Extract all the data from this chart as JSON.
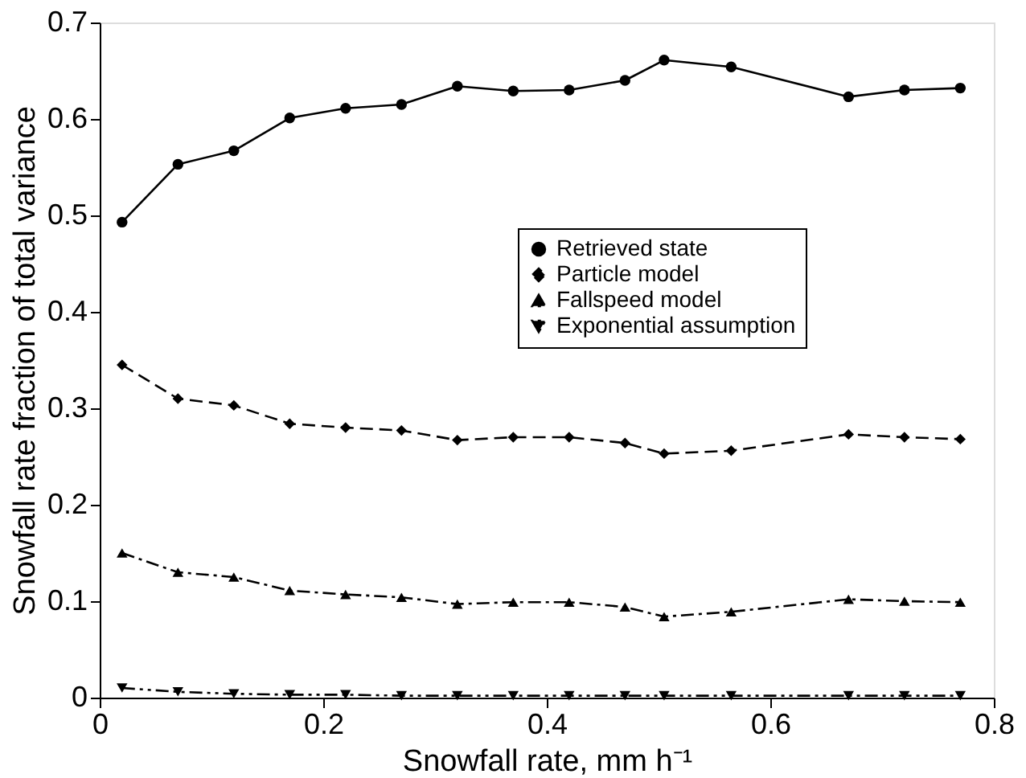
{
  "chart_data": {
    "type": "line",
    "xlabel": "Snowfall rate, mm h⁻¹",
    "ylabel": "Snowfall rate fraction of total variance",
    "x": [
      0.02,
      0.07,
      0.12,
      0.17,
      0.22,
      0.27,
      0.32,
      0.37,
      0.42,
      0.47,
      0.505,
      0.565,
      0.67,
      0.72,
      0.77
    ],
    "series": [
      {
        "name": "Retrieved state",
        "color": "#000000",
        "marker": "circle",
        "line_style": "solid",
        "values": [
          0.493,
          0.553,
          0.567,
          0.601,
          0.611,
          0.615,
          0.634,
          0.629,
          0.63,
          0.64,
          0.661,
          0.654,
          0.623,
          0.63,
          0.632
        ]
      },
      {
        "name": "Particle model",
        "color": "#000000",
        "marker": "diamond",
        "line_style": "dashed",
        "values": [
          0.345,
          0.31,
          0.303,
          0.284,
          0.28,
          0.277,
          0.267,
          0.27,
          0.27,
          0.264,
          0.253,
          0.256,
          0.273,
          0.27,
          0.268
        ]
      },
      {
        "name": "Fallspeed model",
        "color": "#000000",
        "marker": "triangle",
        "line_style": "dashdot",
        "values": [
          0.15,
          0.13,
          0.125,
          0.111,
          0.107,
          0.104,
          0.097,
          0.099,
          0.099,
          0.094,
          0.084,
          0.089,
          0.102,
          0.1,
          0.099
        ]
      },
      {
        "name": "Exponential assumption",
        "color": "#000000",
        "marker": "triangle-down",
        "line_style": "dashdotdot",
        "values": [
          0.01,
          0.006,
          0.004,
          0.003,
          0.003,
          0.002,
          0.002,
          0.002,
          0.002,
          0.002,
          0.002,
          0.002,
          0.002,
          0.002,
          0.002
        ]
      }
    ],
    "xlim": [
      0,
      0.8
    ],
    "xticks": [
      0,
      0.2,
      0.4,
      0.6,
      0.8
    ],
    "ylim": [
      0,
      0.7
    ],
    "yticks": [
      0,
      0.1,
      0.2,
      0.3,
      0.4,
      0.5,
      0.6,
      0.7
    ],
    "grid": false,
    "legend": "right"
  }
}
